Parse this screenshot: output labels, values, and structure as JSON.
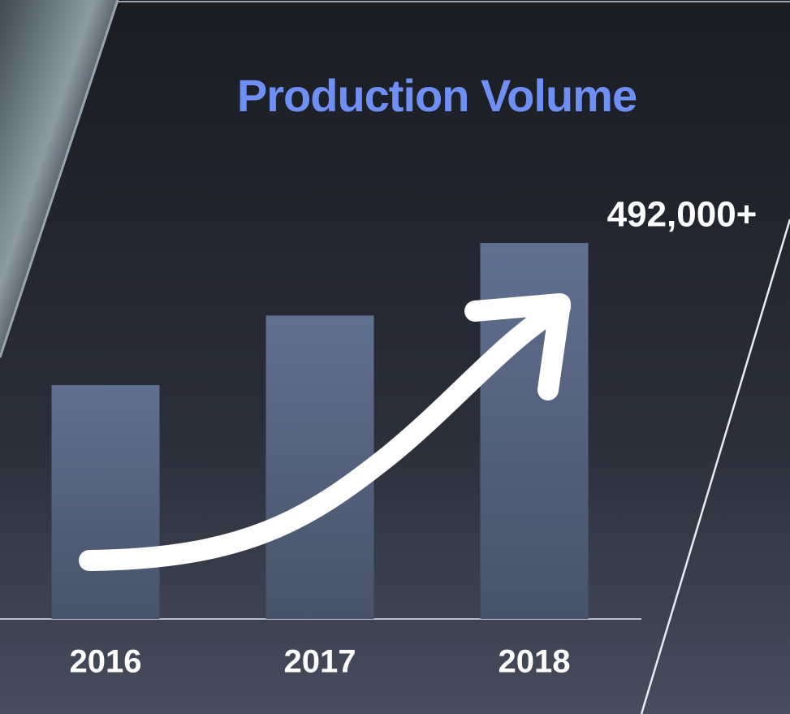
{
  "chart_data": {
    "type": "bar",
    "title": "Production Volume",
    "categories": [
      "2016",
      "2017",
      "2018"
    ],
    "values": [
      306000,
      397000,
      492000
    ],
    "value_labels": [
      null,
      null,
      "492,000+"
    ],
    "color": "#5a6784"
  }
}
